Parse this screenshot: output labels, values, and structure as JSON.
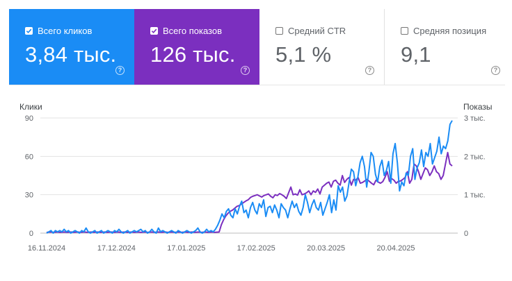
{
  "cards": [
    {
      "label": "Всего кликов",
      "value": "3,84 тыс.",
      "checked": true,
      "color": "#1a8cf5"
    },
    {
      "label": "Всего показов",
      "value": "126 тыс.",
      "checked": true,
      "color": "#7b2fbf"
    },
    {
      "label": "Средний CTR",
      "value": "5,1 %",
      "checked": false,
      "color": "#ffffff"
    },
    {
      "label": "Средняя позиция",
      "value": "9,1",
      "checked": false,
      "color": "#ffffff"
    }
  ],
  "help_glyph": "?",
  "chart_data": {
    "type": "line",
    "left_axis_title": "Клики",
    "right_axis_title": "Показы",
    "left_ticks": [
      "90",
      "60",
      "30",
      "0"
    ],
    "right_ticks": [
      "3 тыс.",
      "2 тыс.",
      "1 тыс.",
      "0"
    ],
    "ylim_left": [
      0,
      90
    ],
    "ylim_right": [
      0,
      3000
    ],
    "x_ticks": [
      "16.11.2024",
      "17.12.2024",
      "17.01.2025",
      "17.02.2025",
      "20.03.2025",
      "20.04.2025"
    ],
    "x_range": [
      "2024-11-16",
      "2025-05-15"
    ],
    "gridlines": true,
    "series": [
      {
        "name": "Клики",
        "axis": "left",
        "color": "#1a8cf5",
        "values": [
          0,
          1,
          2,
          0,
          2,
          1,
          2,
          1,
          3,
          1,
          2,
          0,
          1,
          2,
          1,
          0,
          2,
          1,
          4,
          1,
          0,
          1,
          2,
          0,
          1,
          2,
          0,
          1,
          2,
          1,
          0,
          2,
          1,
          3,
          1,
          0,
          1,
          2,
          0,
          1,
          2,
          1,
          2,
          3,
          1,
          2,
          0,
          1,
          3,
          1,
          0,
          4,
          1,
          2,
          1,
          0,
          1,
          2,
          1,
          0,
          2,
          1,
          0,
          1,
          2,
          1,
          0,
          1,
          2,
          4,
          1,
          0,
          1,
          3,
          1,
          2,
          1,
          3,
          6,
          10,
          15,
          12,
          17,
          19,
          14,
          12,
          19,
          15,
          21,
          25,
          16,
          18,
          12,
          20,
          24,
          18,
          15,
          23,
          20,
          26,
          13,
          20,
          21,
          16,
          22,
          18,
          12,
          23,
          20,
          18,
          12,
          19,
          25,
          20,
          23,
          17,
          14,
          20,
          30,
          24,
          16,
          22,
          26,
          20,
          18,
          24,
          14,
          19,
          24,
          30,
          16,
          26,
          18,
          37,
          32,
          36,
          25,
          29,
          40,
          50,
          48,
          37,
          44,
          55,
          60,
          52,
          36,
          48,
          63,
          60,
          46,
          40,
          52,
          57,
          45,
          49,
          56,
          39,
          62,
          70,
          55,
          33,
          40,
          37,
          47,
          45,
          60,
          66,
          42,
          51,
          55,
          65,
          52,
          63,
          60,
          70,
          54,
          59,
          64,
          75,
          62,
          68,
          66,
          72,
          85,
          88
        ]
      },
      {
        "name": "Показы",
        "axis": "right",
        "color": "#7b2fbf",
        "values": [
          20,
          25,
          30,
          20,
          25,
          30,
          20,
          25,
          30,
          20,
          25,
          30,
          20,
          25,
          30,
          20,
          25,
          30,
          20,
          25,
          30,
          20,
          25,
          30,
          20,
          25,
          30,
          20,
          25,
          30,
          20,
          25,
          30,
          20,
          25,
          30,
          20,
          25,
          30,
          20,
          25,
          30,
          20,
          25,
          30,
          20,
          25,
          30,
          20,
          25,
          30,
          20,
          25,
          30,
          20,
          25,
          30,
          20,
          25,
          30,
          20,
          25,
          30,
          20,
          25,
          30,
          20,
          25,
          30,
          20,
          25,
          30,
          20,
          25,
          30,
          20,
          25,
          30,
          220,
          350,
          450,
          520,
          570,
          600,
          650,
          700,
          720,
          760,
          800,
          840,
          870,
          930,
          960,
          980,
          1000,
          970,
          940,
          980,
          1000,
          1020,
          960,
          920,
          1000,
          980,
          1030,
          1000,
          960,
          900,
          1050,
          1200,
          1000,
          1020,
          990,
          1130,
          1000,
          1020,
          1050,
          1100,
          1000,
          1100,
          1060,
          1150,
          1020,
          1200,
          1250,
          1300,
          1330,
          1200,
          1350,
          1380,
          1300,
          1250,
          1500,
          1320,
          1400,
          1450,
          1250,
          1400,
          1380,
          1450,
          1300,
          1320,
          1360,
          1400,
          1350,
          1300,
          1260,
          1380,
          1330,
          1300,
          1340,
          1450,
          1600,
          1350,
          1420,
          1380,
          1300,
          1350,
          1360,
          1400,
          1450,
          1600,
          1300,
          1400,
          1800,
          1750,
          1600,
          1400,
          1550,
          1700,
          1650,
          1500,
          1600,
          1750,
          1600,
          1550,
          1400,
          1500,
          1800,
          2100,
          1800,
          1750
        ]
      }
    ]
  }
}
